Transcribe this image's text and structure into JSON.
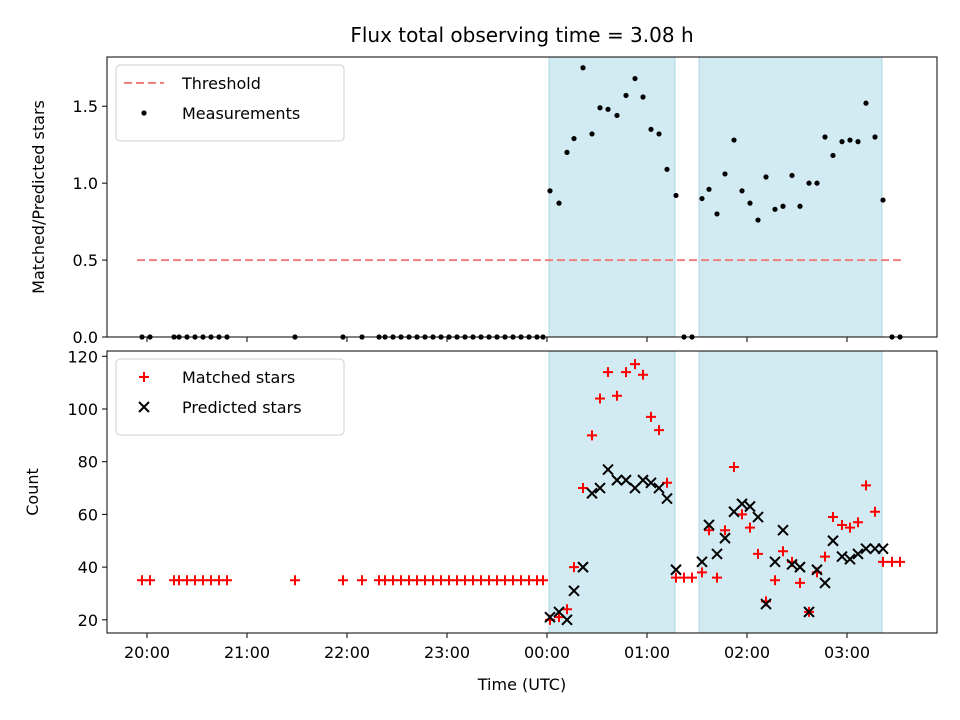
{
  "chart_data": {
    "title": "Flux total observing time = 3.08 h",
    "xlabel": "Time (UTC)",
    "x_ticks": [
      "20:00",
      "21:00",
      "22:00",
      "23:00",
      "00:00",
      "01:00",
      "02:00",
      "03:00"
    ],
    "x_tick_hours": [
      0,
      1,
      2,
      3,
      4,
      5,
      6,
      7
    ],
    "x_unit": "hours after 20:00 UTC",
    "xlim": [
      -0.4,
      7.9
    ],
    "shaded_regions": [
      [
        4.02,
        5.28
      ],
      [
        5.52,
        7.35
      ]
    ],
    "shade_color": "#add8e6",
    "panels": [
      {
        "type": "scatter",
        "ylabel": "Matched/Predicted stars",
        "ylim": [
          0,
          1.82
        ],
        "yticks": [
          0.0,
          0.5,
          1.0,
          1.5
        ],
        "ytick_labels": [
          "0.0",
          "0.5",
          "1.0",
          "1.5"
        ],
        "legend_position": "top-left",
        "threshold": {
          "name": "Threshold",
          "value": 0.5,
          "x_range": [
            -0.1,
            7.55
          ],
          "color": "#f08080"
        },
        "series": [
          {
            "name": "Measurements",
            "marker": "dot",
            "color": "#000000",
            "points": [
              [
                -0.05,
                0.0
              ],
              [
                0.03,
                0.0
              ],
              [
                0.27,
                0.0
              ],
              [
                0.32,
                0.0
              ],
              [
                0.4,
                0.0
              ],
              [
                0.48,
                0.0
              ],
              [
                0.56,
                0.0
              ],
              [
                0.64,
                0.0
              ],
              [
                0.72,
                0.0
              ],
              [
                0.8,
                0.0
              ],
              [
                1.48,
                0.0
              ],
              [
                1.96,
                0.0
              ],
              [
                2.15,
                0.0
              ],
              [
                2.32,
                0.0
              ],
              [
                2.38,
                0.0
              ],
              [
                2.46,
                0.0
              ],
              [
                2.54,
                0.0
              ],
              [
                2.62,
                0.0
              ],
              [
                2.7,
                0.0
              ],
              [
                2.78,
                0.0
              ],
              [
                2.86,
                0.0
              ],
              [
                2.94,
                0.0
              ],
              [
                3.02,
                0.0
              ],
              [
                3.1,
                0.0
              ],
              [
                3.18,
                0.0
              ],
              [
                3.26,
                0.0
              ],
              [
                3.34,
                0.0
              ],
              [
                3.42,
                0.0
              ],
              [
                3.5,
                0.0
              ],
              [
                3.58,
                0.0
              ],
              [
                3.66,
                0.0
              ],
              [
                3.74,
                0.0
              ],
              [
                3.82,
                0.0
              ],
              [
                3.9,
                0.0
              ],
              [
                3.96,
                0.0
              ],
              [
                4.03,
                0.95
              ],
              [
                4.12,
                0.87
              ],
              [
                4.2,
                1.2
              ],
              [
                4.27,
                1.29
              ],
              [
                4.36,
                1.75
              ],
              [
                4.45,
                1.32
              ],
              [
                4.53,
                1.49
              ],
              [
                4.61,
                1.48
              ],
              [
                4.7,
                1.44
              ],
              [
                4.79,
                1.57
              ],
              [
                4.88,
                1.68
              ],
              [
                4.96,
                1.56
              ],
              [
                5.04,
                1.35
              ],
              [
                5.12,
                1.32
              ],
              [
                5.2,
                1.09
              ],
              [
                5.29,
                0.92
              ],
              [
                5.37,
                0.0
              ],
              [
                5.45,
                0.0
              ],
              [
                5.55,
                0.9
              ],
              [
                5.62,
                0.96
              ],
              [
                5.7,
                0.8
              ],
              [
                5.78,
                1.06
              ],
              [
                5.87,
                1.28
              ],
              [
                5.95,
                0.95
              ],
              [
                6.03,
                0.87
              ],
              [
                6.11,
                0.76
              ],
              [
                6.19,
                1.04
              ],
              [
                6.28,
                0.83
              ],
              [
                6.36,
                0.85
              ],
              [
                6.45,
                1.05
              ],
              [
                6.53,
                0.85
              ],
              [
                6.62,
                1.0
              ],
              [
                6.7,
                1.0
              ],
              [
                6.78,
                1.3
              ],
              [
                6.86,
                1.18
              ],
              [
                6.95,
                1.27
              ],
              [
                7.03,
                1.28
              ],
              [
                7.11,
                1.27
              ],
              [
                7.19,
                1.52
              ],
              [
                7.28,
                1.3
              ],
              [
                7.36,
                0.89
              ],
              [
                7.45,
                0.0
              ],
              [
                7.53,
                0.0
              ]
            ]
          }
        ]
      },
      {
        "type": "scatter",
        "ylabel": "Count",
        "ylim": [
          15,
          122
        ],
        "yticks": [
          20,
          40,
          60,
          80,
          100,
          120
        ],
        "ytick_labels": [
          "20",
          "40",
          "60",
          "80",
          "100",
          "120"
        ],
        "legend_position": "top-left",
        "series": [
          {
            "name": "Matched stars",
            "marker": "plus",
            "color": "#ff0000",
            "points": [
              [
                -0.05,
                35
              ],
              [
                0.03,
                35
              ],
              [
                0.27,
                35
              ],
              [
                0.32,
                35
              ],
              [
                0.4,
                35
              ],
              [
                0.48,
                35
              ],
              [
                0.56,
                35
              ],
              [
                0.64,
                35
              ],
              [
                0.72,
                35
              ],
              [
                0.8,
                35
              ],
              [
                1.48,
                35
              ],
              [
                1.96,
                35
              ],
              [
                2.15,
                35
              ],
              [
                2.32,
                35
              ],
              [
                2.38,
                35
              ],
              [
                2.46,
                35
              ],
              [
                2.54,
                35
              ],
              [
                2.62,
                35
              ],
              [
                2.7,
                35
              ],
              [
                2.78,
                35
              ],
              [
                2.86,
                35
              ],
              [
                2.94,
                35
              ],
              [
                3.02,
                35
              ],
              [
                3.1,
                35
              ],
              [
                3.18,
                35
              ],
              [
                3.26,
                35
              ],
              [
                3.34,
                35
              ],
              [
                3.42,
                35
              ],
              [
                3.5,
                35
              ],
              [
                3.58,
                35
              ],
              [
                3.66,
                35
              ],
              [
                3.74,
                35
              ],
              [
                3.82,
                35
              ],
              [
                3.9,
                35
              ],
              [
                3.96,
                35
              ],
              [
                4.03,
                20
              ],
              [
                4.12,
                21
              ],
              [
                4.2,
                24
              ],
              [
                4.27,
                40
              ],
              [
                4.36,
                70
              ],
              [
                4.45,
                90
              ],
              [
                4.53,
                104
              ],
              [
                4.61,
                114
              ],
              [
                4.7,
                105
              ],
              [
                4.79,
                114
              ],
              [
                4.88,
                117
              ],
              [
                4.96,
                113
              ],
              [
                5.04,
                97
              ],
              [
                5.12,
                92
              ],
              [
                5.2,
                72
              ],
              [
                5.29,
                36
              ],
              [
                5.37,
                36
              ],
              [
                5.45,
                36
              ],
              [
                5.55,
                38
              ],
              [
                5.62,
                54
              ],
              [
                5.7,
                36
              ],
              [
                5.78,
                54
              ],
              [
                5.87,
                78
              ],
              [
                5.95,
                60
              ],
              [
                6.03,
                55
              ],
              [
                6.11,
                45
              ],
              [
                6.19,
                27
              ],
              [
                6.28,
                35
              ],
              [
                6.36,
                46
              ],
              [
                6.45,
                42
              ],
              [
                6.53,
                34
              ],
              [
                6.62,
                23
              ],
              [
                6.7,
                38
              ],
              [
                6.78,
                44
              ],
              [
                6.86,
                59
              ],
              [
                6.95,
                56
              ],
              [
                7.03,
                55
              ],
              [
                7.11,
                57
              ],
              [
                7.19,
                71
              ],
              [
                7.28,
                61
              ],
              [
                7.36,
                42
              ],
              [
                7.45,
                42
              ],
              [
                7.53,
                42
              ]
            ]
          },
          {
            "name": "Predicted stars",
            "marker": "x",
            "color": "#000000",
            "points": [
              [
                4.03,
                21
              ],
              [
                4.12,
                23
              ],
              [
                4.2,
                20
              ],
              [
                4.27,
                31
              ],
              [
                4.36,
                40
              ],
              [
                4.45,
                68
              ],
              [
                4.53,
                70
              ],
              [
                4.61,
                77
              ],
              [
                4.7,
                73
              ],
              [
                4.79,
                73
              ],
              [
                4.88,
                70
              ],
              [
                4.96,
                73
              ],
              [
                5.04,
                72
              ],
              [
                5.12,
                70
              ],
              [
                5.2,
                66
              ],
              [
                5.29,
                39
              ],
              [
                5.55,
                42
              ],
              [
                5.62,
                56
              ],
              [
                5.7,
                45
              ],
              [
                5.78,
                51
              ],
              [
                5.87,
                61
              ],
              [
                5.95,
                64
              ],
              [
                6.03,
                63
              ],
              [
                6.11,
                59
              ],
              [
                6.19,
                26
              ],
              [
                6.28,
                42
              ],
              [
                6.36,
                54
              ],
              [
                6.45,
                41
              ],
              [
                6.53,
                40
              ],
              [
                6.62,
                23
              ],
              [
                6.7,
                39
              ],
              [
                6.78,
                34
              ],
              [
                6.86,
                50
              ],
              [
                6.95,
                44
              ],
              [
                7.03,
                43
              ],
              [
                7.11,
                45
              ],
              [
                7.19,
                47
              ],
              [
                7.28,
                47
              ],
              [
                7.36,
                47
              ]
            ]
          }
        ]
      }
    ]
  }
}
